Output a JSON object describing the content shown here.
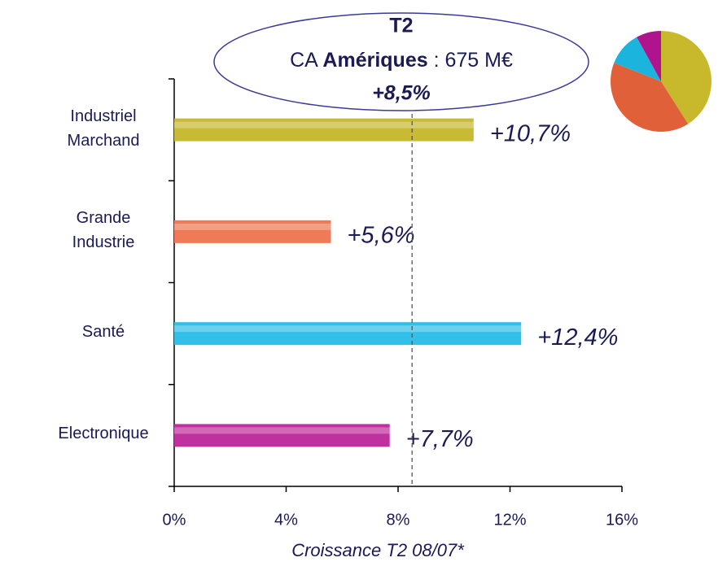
{
  "chart_data": [
    {
      "type": "bar",
      "orientation": "horizontal",
      "categories": [
        "Industriel Marchand",
        "Grande Industrie",
        "Santé",
        "Electronique"
      ],
      "values": [
        10.7,
        5.6,
        12.4,
        7.7
      ],
      "value_labels": [
        "+10,7%",
        "+5,6%",
        "+12,4%",
        "+7,7%"
      ],
      "colors": [
        "#c9ba35",
        "#ee7a58",
        "#33c0e8",
        "#c1309f"
      ],
      "xlim": [
        0,
        16
      ],
      "xticks": [
        {
          "value": 0,
          "label": "0%"
        },
        {
          "value": 4,
          "label": "4%"
        },
        {
          "value": 8,
          "label": "8%"
        },
        {
          "value": 12,
          "label": "12%"
        },
        {
          "value": 16,
          "label": "16%"
        }
      ],
      "xlabel": "Croissance T2 08/07*",
      "reference_line": {
        "value": 8.5,
        "label": "+8,5%"
      },
      "annotation": {
        "title": "T2",
        "text": [
          "CA ",
          "Amériques",
          " : 675 M€"
        ]
      }
    },
    {
      "type": "pie",
      "values": [
        41,
        40,
        11,
        8
      ],
      "colors": [
        "#c8b92c",
        "#e0603a",
        "#1ab4dc",
        "#b0148c"
      ]
    }
  ]
}
